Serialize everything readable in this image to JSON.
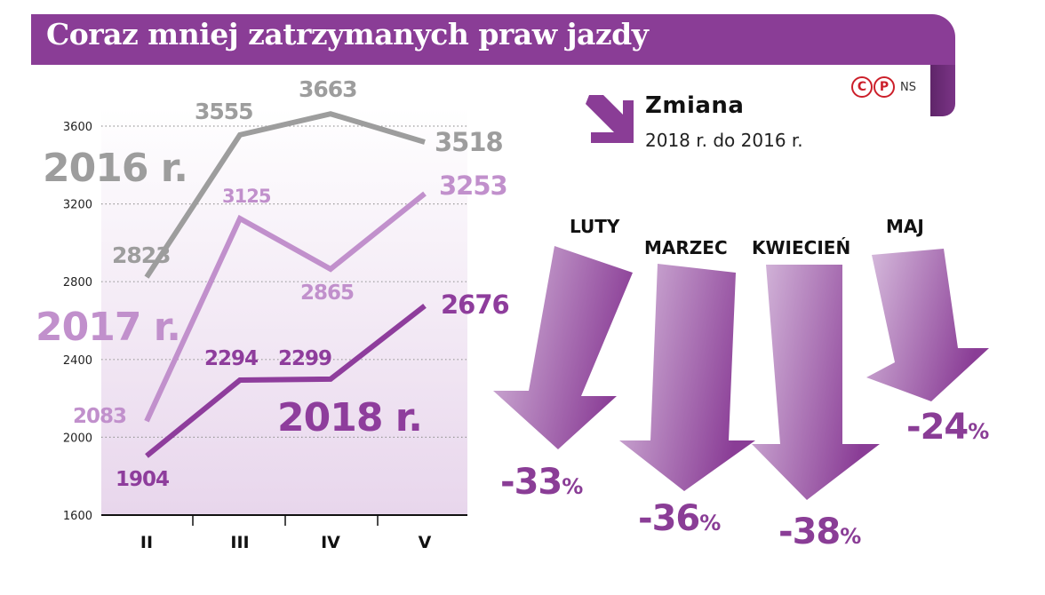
{
  "header": {
    "title": "Coraz mniej zatrzymanych praw jazdy",
    "badges": [
      "C",
      "P"
    ],
    "source": "NS"
  },
  "change_panel": {
    "title": "Zmiana",
    "subtitle": "2018 r. do 2016 r.",
    "icon": "arrow-down-right-icon",
    "items": [
      {
        "month": "LUTY",
        "value": "-33",
        "unit": "%"
      },
      {
        "month": "MARZEC",
        "value": "-36",
        "unit": "%"
      },
      {
        "month": "KWIECIEŃ",
        "value": "-38",
        "unit": "%"
      },
      {
        "month": "MAJ",
        "value": "-24",
        "unit": "%"
      }
    ]
  },
  "chart_data": {
    "type": "line",
    "title": "Coraz mniej zatrzymanych praw jazdy",
    "xlabel": "",
    "ylabel": "",
    "categories": [
      "II",
      "III",
      "IV",
      "V"
    ],
    "yticks": [
      1600,
      2000,
      2400,
      2800,
      3200,
      3600
    ],
    "ylim": [
      1600,
      3600
    ],
    "grid": true,
    "series": [
      {
        "name": "2016 r.",
        "values": [
          2823,
          3555,
          3663,
          3518
        ],
        "labels": [
          "2823",
          "3555",
          "3663",
          "3518"
        ]
      },
      {
        "name": "2017 r.",
        "values": [
          2083,
          3125,
          2865,
          3253
        ],
        "labels": [
          "2083",
          "3125",
          "2865",
          "3253"
        ]
      },
      {
        "name": "2018 r.",
        "values": [
          1904,
          2294,
          2299,
          2676
        ],
        "labels": [
          "1904",
          "2294",
          "2299",
          "2676"
        ]
      }
    ]
  },
  "colors": {
    "banner": "#8a3d96",
    "s2016": "#9d9d9d",
    "s2017": "#c190cc",
    "s2018": "#8e3d9c",
    "arrow_dark": "#8a3d96",
    "arrow_light": "#d8bede",
    "accent_red": "#cc1f2a"
  }
}
